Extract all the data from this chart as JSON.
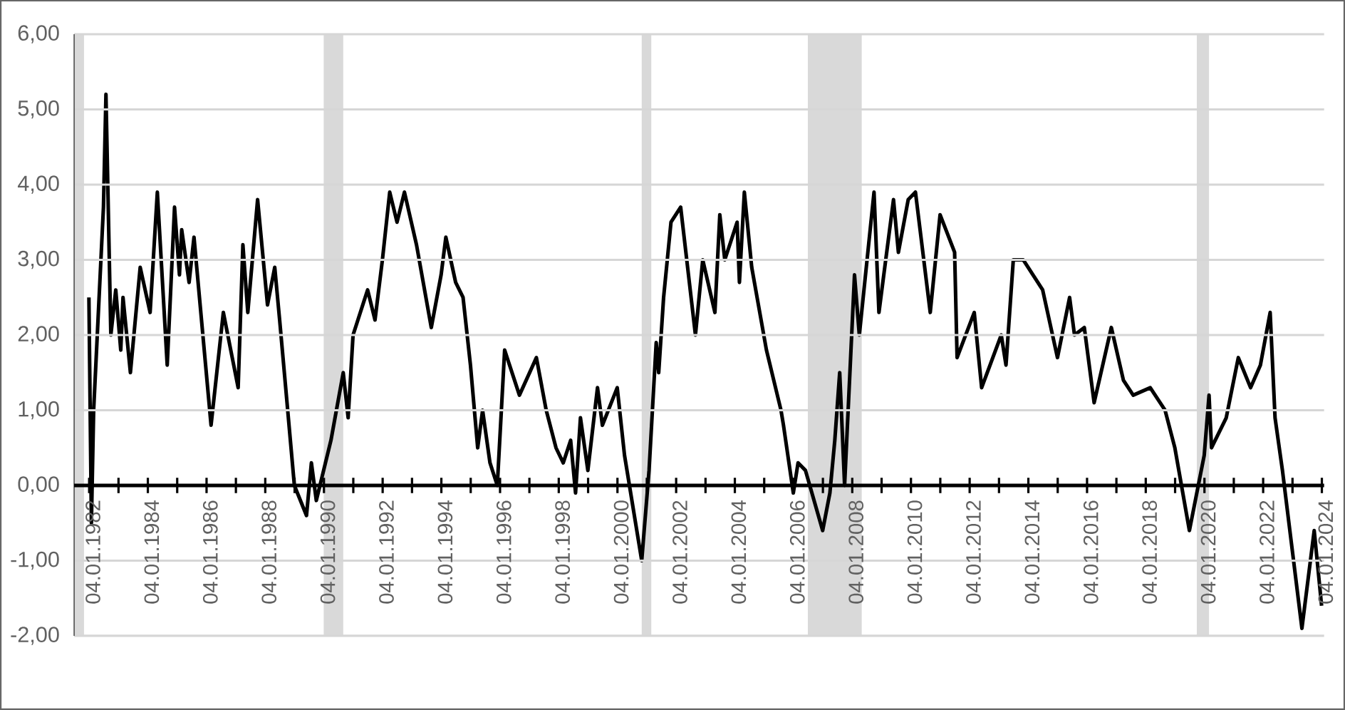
{
  "chart_data": {
    "type": "line",
    "xlim": [
      "1981-07-01",
      "2024-02-01"
    ],
    "ylim": [
      -2,
      6
    ],
    "yticks": [
      {
        "value": -2,
        "label": "-2,00"
      },
      {
        "value": -1,
        "label": "-1,00"
      },
      {
        "value": 0,
        "label": "0,00"
      },
      {
        "value": 1,
        "label": "1,00"
      },
      {
        "value": 2,
        "label": "2,00"
      },
      {
        "value": 3,
        "label": "3,00"
      },
      {
        "value": 4,
        "label": "4,00"
      },
      {
        "value": 5,
        "label": "5,00"
      },
      {
        "value": 6,
        "label": "6,00"
      }
    ],
    "xticks": [
      {
        "value": "1982-01-04",
        "label": "04.01.1982"
      },
      {
        "value": "1983-01-04",
        "label": null
      },
      {
        "value": "1984-01-04",
        "label": "04.01.1984"
      },
      {
        "value": "1985-01-04",
        "label": null
      },
      {
        "value": "1986-01-04",
        "label": "04.01.1986"
      },
      {
        "value": "1987-01-04",
        "label": null
      },
      {
        "value": "1988-01-04",
        "label": "04.01.1988"
      },
      {
        "value": "1989-01-04",
        "label": null
      },
      {
        "value": "1990-01-04",
        "label": "04.01.1990"
      },
      {
        "value": "1991-01-04",
        "label": null
      },
      {
        "value": "1992-01-04",
        "label": "04.01.1992"
      },
      {
        "value": "1993-01-04",
        "label": null
      },
      {
        "value": "1994-01-04",
        "label": "04.01.1994"
      },
      {
        "value": "1995-01-04",
        "label": null
      },
      {
        "value": "1996-01-04",
        "label": "04.01.1996"
      },
      {
        "value": "1997-01-04",
        "label": null
      },
      {
        "value": "1998-01-04",
        "label": "04.01.1998"
      },
      {
        "value": "1999-01-04",
        "label": null
      },
      {
        "value": "2000-01-04",
        "label": "04.01.2000"
      },
      {
        "value": "2001-01-04",
        "label": null
      },
      {
        "value": "2002-01-04",
        "label": "04.01.2002"
      },
      {
        "value": "2003-01-04",
        "label": null
      },
      {
        "value": "2004-01-04",
        "label": "04.01.2004"
      },
      {
        "value": "2005-01-04",
        "label": null
      },
      {
        "value": "2006-01-04",
        "label": "04.01.2006"
      },
      {
        "value": "2007-01-04",
        "label": null
      },
      {
        "value": "2008-01-04",
        "label": "04.01.2008"
      },
      {
        "value": "2009-01-04",
        "label": null
      },
      {
        "value": "2010-01-04",
        "label": "04.01.2010"
      },
      {
        "value": "2011-01-04",
        "label": null
      },
      {
        "value": "2012-01-04",
        "label": "04.01.2012"
      },
      {
        "value": "2013-01-04",
        "label": null
      },
      {
        "value": "2014-01-04",
        "label": "04.01.2014"
      },
      {
        "value": "2015-01-04",
        "label": null
      },
      {
        "value": "2016-01-04",
        "label": "04.01.2016"
      },
      {
        "value": "2017-01-04",
        "label": null
      },
      {
        "value": "2018-01-04",
        "label": "04.01.2018"
      },
      {
        "value": "2019-01-04",
        "label": null
      },
      {
        "value": "2020-01-04",
        "label": "04.01.2020"
      },
      {
        "value": "2021-01-04",
        "label": null
      },
      {
        "value": "2022-01-04",
        "label": "04.01.2022"
      },
      {
        "value": "2023-01-04",
        "label": null
      },
      {
        "value": "2024-01-04",
        "label": "04.01.2024"
      }
    ],
    "grid": "y",
    "line_style": "solid",
    "bands": [
      {
        "axis": "x",
        "from": "1981-07",
        "to": "1981-11",
        "color": "#d9d9d9"
      },
      {
        "axis": "x",
        "from": "1990-01",
        "to": "1990-09",
        "color": "#d9d9d9"
      },
      {
        "axis": "x",
        "from": "2000-11",
        "to": "2001-03",
        "color": "#d9d9d9"
      },
      {
        "axis": "x",
        "from": "2006-07",
        "to": "2008-05",
        "color": "#d9d9d9"
      },
      {
        "axis": "x",
        "from": "2019-10",
        "to": "2020-03",
        "color": "#d9d9d9"
      }
    ],
    "series": [
      {
        "color": "#000000",
        "x": [
          "1982-01",
          "1982-02",
          "1982-03",
          "1982-07",
          "1982-08",
          "1982-10",
          "1982-12",
          "1983-02",
          "1983-03",
          "1983-06",
          "1983-10",
          "1984-02",
          "1984-05",
          "1984-09",
          "1984-12",
          "1985-02",
          "1985-03",
          "1985-06",
          "1985-08",
          "1986-03",
          "1986-08",
          "1987-02",
          "1987-04",
          "1987-06",
          "1987-10",
          "1988-02",
          "1988-05",
          "1988-07",
          "1988-10",
          "1989-01",
          "1989-06",
          "1989-08",
          "1989-10",
          "1990-04",
          "1990-09",
          "1990-11",
          "1991-01",
          "1991-07",
          "1991-10",
          "1992-01",
          "1992-04",
          "1992-07",
          "1992-10",
          "1993-03",
          "1993-09",
          "1994-01",
          "1994-03",
          "1994-07",
          "1994-10",
          "1995-01",
          "1995-04",
          "1995-06",
          "1995-09",
          "1995-12",
          "1996-03",
          "1996-09",
          "1997-04",
          "1997-08",
          "1997-12",
          "1998-03",
          "1998-06",
          "1998-08",
          "1998-10",
          "1999-01",
          "1999-05",
          "1999-07",
          "2000-01",
          "2000-04",
          "2000-11",
          "2001-02",
          "2001-05",
          "2001-06",
          "2001-08",
          "2001-11",
          "2002-03",
          "2002-09",
          "2002-12",
          "2003-05",
          "2003-07",
          "2003-09",
          "2004-02",
          "2004-03",
          "2004-05",
          "2004-08",
          "2005-02",
          "2005-08",
          "2005-09",
          "2006-01",
          "2006-03",
          "2006-06",
          "2007-01",
          "2007-04",
          "2007-06",
          "2007-08",
          "2007-10",
          "2008-02",
          "2008-04",
          "2008-10",
          "2008-12",
          "2009-06",
          "2009-08",
          "2009-12",
          "2010-03",
          "2010-09",
          "2011-01",
          "2011-07",
          "2011-08",
          "2012-03",
          "2012-06",
          "2013-02",
          "2013-04",
          "2013-07",
          "2013-11",
          "2014-07",
          "2015-01",
          "2015-06",
          "2015-08",
          "2015-12",
          "2016-04",
          "2016-11",
          "2017-04",
          "2017-08",
          "2018-03",
          "2018-09",
          "2019-01",
          "2019-07",
          "2020-01",
          "2020-03",
          "2020-04",
          "2020-10",
          "2021-03",
          "2021-08",
          "2021-12",
          "2022-04",
          "2022-06",
          "2022-09",
          "2023-05",
          "2023-10",
          "2024-01"
        ],
        "values": [
          2.5,
          -0.5,
          1.0,
          3.7,
          5.2,
          2.0,
          2.6,
          1.8,
          2.5,
          1.5,
          2.9,
          2.3,
          3.9,
          1.6,
          3.7,
          2.8,
          3.4,
          2.7,
          3.3,
          0.8,
          2.3,
          1.3,
          3.2,
          2.3,
          3.8,
          2.4,
          2.9,
          2.2,
          1.1,
          0.0,
          -0.4,
          0.3,
          -0.2,
          0.6,
          1.5,
          0.9,
          2.0,
          2.6,
          2.2,
          3.0,
          3.9,
          3.5,
          3.9,
          3.2,
          2.1,
          2.8,
          3.3,
          2.7,
          2.5,
          1.6,
          0.5,
          1.0,
          0.3,
          0.0,
          1.8,
          1.2,
          1.7,
          1.0,
          0.5,
          0.3,
          0.6,
          -0.1,
          0.9,
          0.2,
          1.3,
          0.8,
          1.3,
          0.4,
          -1.0,
          0.2,
          1.9,
          1.5,
          2.5,
          3.5,
          3.7,
          2.0,
          3.0,
          2.3,
          3.6,
          3.0,
          3.5,
          2.7,
          3.9,
          2.9,
          1.8,
          1.0,
          0.8,
          -0.1,
          0.3,
          0.2,
          -0.6,
          -0.1,
          0.6,
          1.5,
          0.0,
          2.8,
          2.0,
          3.9,
          2.3,
          3.8,
          3.1,
          3.8,
          3.9,
          2.3,
          3.6,
          3.1,
          1.7,
          2.3,
          1.3,
          2.0,
          1.6,
          3.0,
          3.0,
          2.6,
          1.7,
          2.5,
          2.0,
          2.1,
          1.1,
          2.1,
          1.4,
          1.2,
          1.3,
          1.0,
          0.5,
          -0.6,
          0.4,
          1.2,
          0.5,
          0.9,
          1.7,
          1.3,
          1.6,
          2.3,
          0.9,
          0.2,
          -1.9,
          -0.6,
          -1.6
        ]
      }
    ]
  }
}
